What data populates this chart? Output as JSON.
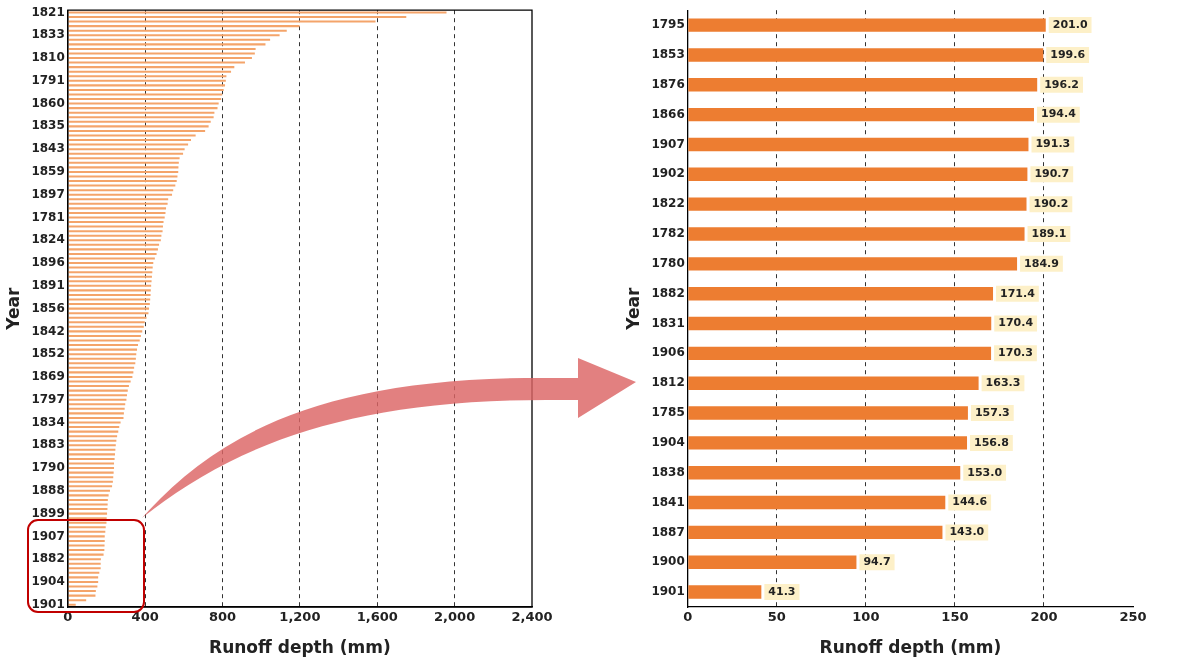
{
  "chart_data": [
    {
      "type": "bar",
      "orientation": "horizontal",
      "xlabel": "Runoff depth (mm)",
      "ylabel": "Year",
      "color": "#f4a46a",
      "grid": "x",
      "categories": [
        "1821",
        null,
        null,
        null,
        null,
        "1833",
        null,
        null,
        null,
        null,
        "1810",
        null,
        null,
        null,
        null,
        "1791",
        null,
        null,
        null,
        null,
        "1860",
        null,
        null,
        null,
        null,
        "1835",
        null,
        null,
        null,
        null,
        "1843",
        null,
        null,
        null,
        null,
        "1859",
        null,
        null,
        null,
        null,
        "1897",
        null,
        null,
        null,
        null,
        "1781",
        null,
        null,
        null,
        null,
        "1824",
        null,
        null,
        null,
        null,
        "1896",
        null,
        null,
        null,
        null,
        "1891",
        null,
        null,
        null,
        null,
        "1856",
        null,
        null,
        null,
        null,
        "1842",
        null,
        null,
        null,
        null,
        "1852",
        null,
        null,
        null,
        null,
        "1869",
        null,
        null,
        null,
        null,
        "1797",
        null,
        null,
        null,
        null,
        "1834",
        null,
        null,
        null,
        null,
        "1883",
        null,
        null,
        null,
        null,
        "1790",
        null,
        null,
        null,
        null,
        "1888",
        null,
        null,
        null,
        null,
        "1899",
        null,
        null,
        null,
        null,
        "1907",
        null,
        null,
        null,
        null,
        "1882",
        null,
        null,
        null,
        null,
        "1904",
        null,
        null,
        null,
        null,
        "1901"
      ],
      "values": [
        1958,
        1750,
        1591,
        1198,
        1132,
        1095,
        1046,
        1022,
        971,
        967,
        952,
        916,
        861,
        844,
        820,
        817,
        813,
        806,
        798,
        793,
        780,
        774,
        758,
        754,
        739,
        728,
        710,
        661,
        637,
        622,
        604,
        596,
        578,
        574,
        572,
        571,
        567,
        563,
        556,
        545,
        539,
        519,
        516,
        508,
        505,
        501,
        495,
        492,
        490,
        484,
        481,
        472,
        466,
        459,
        450,
        442,
        439,
        437,
        435,
        433,
        431,
        429,
        428,
        426,
        424,
        420,
        417,
        407,
        398,
        393,
        385,
        378,
        372,
        363,
        358,
        354,
        352,
        349,
        343,
        339,
        334,
        325,
        316,
        310,
        306,
        303,
        297,
        294,
        290,
        288,
        273,
        266,
        261,
        255,
        251,
        248,
        246,
        244,
        242,
        239,
        239,
        237,
        235,
        233,
        229,
        218,
        211,
        207,
        206,
        205,
        203,
        201,
        200,
        196,
        194,
        191,
        191,
        190,
        189,
        185,
        171,
        170,
        170,
        163,
        157,
        157,
        153,
        145,
        143,
        95,
        41
      ],
      "xlim": [
        0,
        2400
      ],
      "xticks": [
        0,
        400,
        800,
        {
          "value": 1200,
          "label": "1,200"
        },
        {
          "value": 1600,
          "label": "1,600"
        },
        {
          "value": 2000,
          "label": "2,000"
        },
        {
          "value": 2400,
          "label": "2,400"
        }
      ]
    },
    {
      "type": "bar",
      "orientation": "horizontal",
      "xlabel": "Runoff depth (mm)",
      "ylabel": "Year",
      "color": "#ed7d31",
      "grid": "x",
      "categories": [
        "1795",
        "1853",
        "1876",
        "1866",
        "1907",
        "1902",
        "1822",
        "1782",
        "1780",
        "1882",
        "1831",
        "1906",
        "1812",
        "1785",
        "1904",
        "1838",
        "1841",
        "1887",
        "1900",
        "1901"
      ],
      "values": [
        201.0,
        199.6,
        196.2,
        194.4,
        191.3,
        190.7,
        190.2,
        189.1,
        184.9,
        171.4,
        170.4,
        170.3,
        163.3,
        157.3,
        156.8,
        153.0,
        144.6,
        143.0,
        94.7,
        41.3
      ],
      "value_labels": [
        "201.0",
        "199.6",
        "196.2",
        "194.4",
        "191.3",
        "190.7",
        "190.2",
        "189.1",
        "184.9",
        "171.4",
        "170.4",
        "170.3",
        "163.3",
        "157.3",
        "156.8",
        "153.0",
        "144.6",
        "143.0",
        "94.7",
        "41.3"
      ],
      "xlim": [
        0,
        250
      ],
      "xticks": [
        0,
        50,
        100,
        150,
        200,
        250
      ]
    }
  ]
}
